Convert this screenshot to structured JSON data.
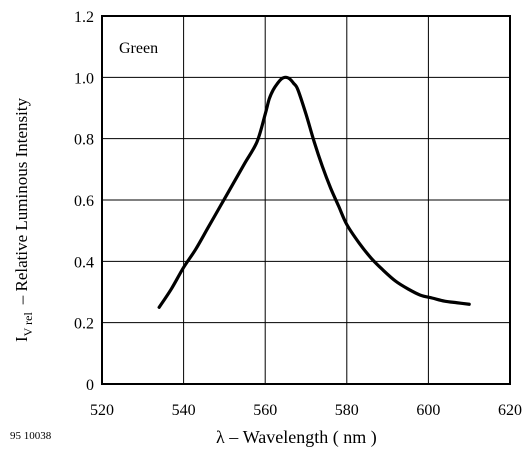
{
  "chart_data": {
    "type": "line",
    "title": "",
    "xlabel_symbol": "λ",
    "xlabel_text": "– Wavelength ( nm )",
    "ylabel_main": "I",
    "ylabel_sub": "V rel",
    "ylabel_text": "– Relative Luminous Intensity",
    "xlim": [
      520,
      620
    ],
    "ylim": [
      0,
      1.2
    ],
    "x_ticks": [
      520,
      540,
      560,
      580,
      600,
      620
    ],
    "y_ticks": [
      0,
      0.2,
      0.4,
      0.6,
      0.8,
      1.0,
      1.2
    ],
    "x_tick_labels": [
      "520",
      "540",
      "560",
      "580",
      "600",
      "620"
    ],
    "y_tick_labels": [
      "0",
      "0.2",
      "0.4",
      "0.6",
      "0.8",
      "1.0",
      "1.2"
    ],
    "grid": true,
    "series": [
      {
        "name": "Green",
        "x": [
          534,
          537,
          540,
          543,
          546,
          549,
          552,
          555,
          558,
          560,
          561,
          562,
          563,
          564,
          565,
          566,
          567,
          568,
          570,
          572,
          574,
          576,
          578,
          580,
          583,
          586,
          589,
          592,
          595,
          598,
          601,
          604,
          607,
          610
        ],
        "y": [
          0.25,
          0.31,
          0.38,
          0.44,
          0.51,
          0.58,
          0.65,
          0.72,
          0.79,
          0.88,
          0.93,
          0.96,
          0.98,
          0.995,
          1.0,
          0.995,
          0.98,
          0.96,
          0.88,
          0.79,
          0.71,
          0.64,
          0.58,
          0.52,
          0.46,
          0.41,
          0.37,
          0.335,
          0.31,
          0.29,
          0.28,
          0.27,
          0.265,
          0.26
        ]
      }
    ]
  },
  "legend_label": "Green",
  "doc_code": "95 10038"
}
